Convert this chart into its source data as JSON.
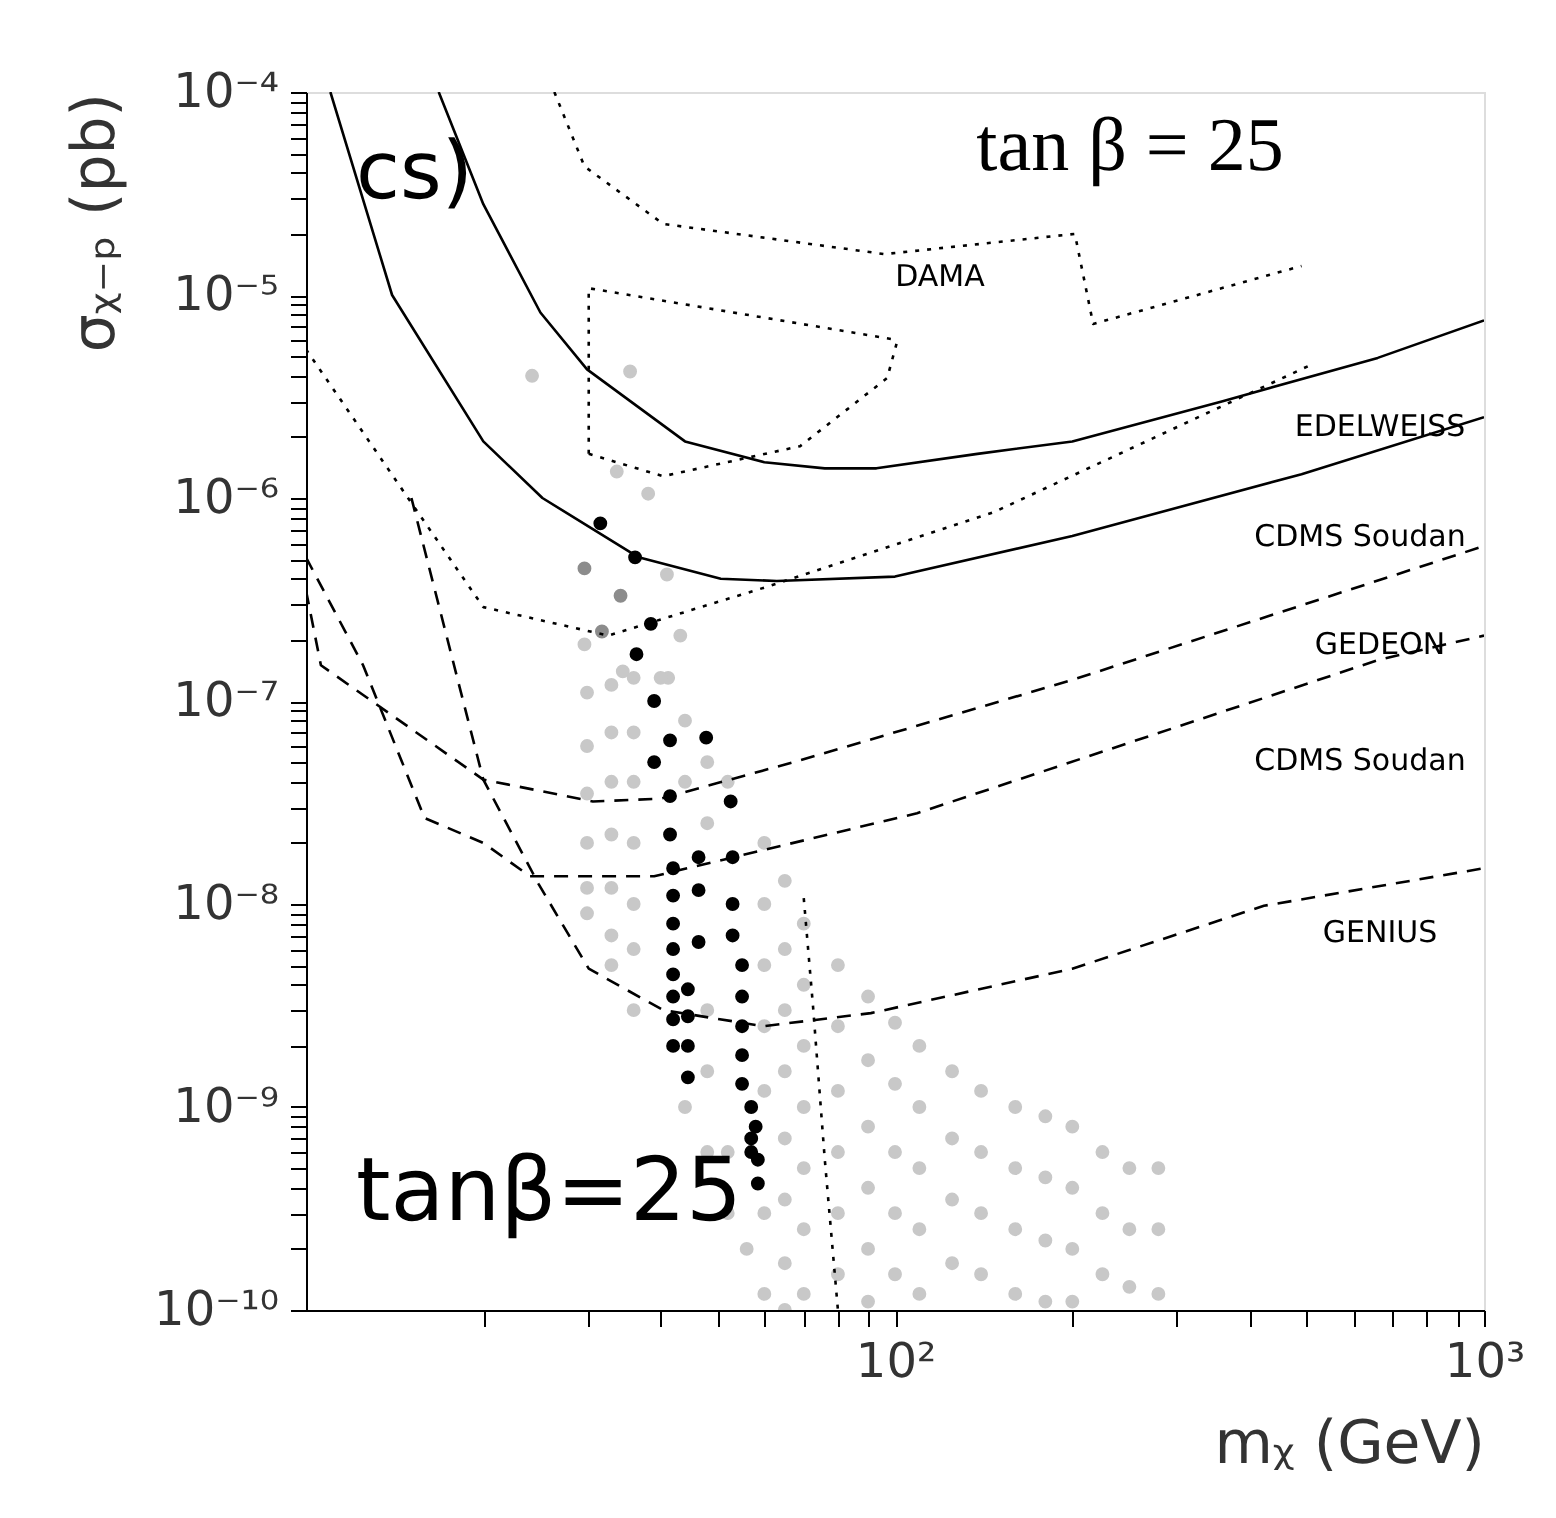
{
  "chart_data": {
    "type": "line",
    "xlabel": "mᵪ (GeV)",
    "ylabel": "σᵪ₋ₚ (pb)",
    "log": "xy",
    "grid": false,
    "xlim": [
      10,
      1000
    ],
    "ylim": [
      1e-10,
      0.0001
    ],
    "xticks": [
      {
        "value": 20,
        "label": null
      },
      {
        "value": 30,
        "label": null
      },
      {
        "value": 40,
        "label": null
      },
      {
        "value": 50,
        "label": null
      },
      {
        "value": 60,
        "label": null
      },
      {
        "value": 70,
        "label": null
      },
      {
        "value": 80,
        "label": null
      },
      {
        "value": 90,
        "label": null
      },
      {
        "value": 100,
        "label": "10²"
      },
      {
        "value": 200,
        "label": null
      },
      {
        "value": 300,
        "label": null
      },
      {
        "value": 400,
        "label": null
      },
      {
        "value": 500,
        "label": null
      },
      {
        "value": 600,
        "label": null
      },
      {
        "value": 700,
        "label": null
      },
      {
        "value": 800,
        "label": null
      },
      {
        "value": 900,
        "label": null
      },
      {
        "value": 1000,
        "label": "10³"
      }
    ],
    "yticks": [
      {
        "value": 1e-10,
        "label": "10⁻¹⁰"
      },
      {
        "value": 2e-10,
        "label": null
      },
      {
        "value": 3e-10,
        "label": null
      },
      {
        "value": 4e-10,
        "label": null
      },
      {
        "value": 5e-10,
        "label": null
      },
      {
        "value": 6e-10,
        "label": null
      },
      {
        "value": 7e-10,
        "label": null
      },
      {
        "value": 8e-10,
        "label": null
      },
      {
        "value": 9e-10,
        "label": null
      },
      {
        "value": 1e-09,
        "label": "10⁻⁹"
      },
      {
        "value": 2e-09,
        "label": null
      },
      {
        "value": 3e-09,
        "label": null
      },
      {
        "value": 4e-09,
        "label": null
      },
      {
        "value": 5e-09,
        "label": null
      },
      {
        "value": 6e-09,
        "label": null
      },
      {
        "value": 7e-09,
        "label": null
      },
      {
        "value": 8e-09,
        "label": null
      },
      {
        "value": 9e-09,
        "label": null
      },
      {
        "value": 1e-08,
        "label": "10⁻⁸"
      },
      {
        "value": 2e-08,
        "label": null
      },
      {
        "value": 3e-08,
        "label": null
      },
      {
        "value": 4e-08,
        "label": null
      },
      {
        "value": 5e-08,
        "label": null
      },
      {
        "value": 6e-08,
        "label": null
      },
      {
        "value": 7e-08,
        "label": null
      },
      {
        "value": 8e-08,
        "label": null
      },
      {
        "value": 9e-08,
        "label": null
      },
      {
        "value": 1e-07,
        "label": "10⁻⁷"
      },
      {
        "value": 2e-07,
        "label": null
      },
      {
        "value": 3e-07,
        "label": null
      },
      {
        "value": 4e-07,
        "label": null
      },
      {
        "value": 5e-07,
        "label": null
      },
      {
        "value": 6e-07,
        "label": null
      },
      {
        "value": 7e-07,
        "label": null
      },
      {
        "value": 8e-07,
        "label": null
      },
      {
        "value": 9e-07,
        "label": null
      },
      {
        "value": 1e-06,
        "label": "10⁻⁶"
      },
      {
        "value": 2e-06,
        "label": null
      },
      {
        "value": 3e-06,
        "label": null
      },
      {
        "value": 4e-06,
        "label": null
      },
      {
        "value": 5e-06,
        "label": null
      },
      {
        "value": 6e-06,
        "label": null
      },
      {
        "value": 7e-06,
        "label": null
      },
      {
        "value": 8e-06,
        "label": null
      },
      {
        "value": 9e-06,
        "label": null
      },
      {
        "value": 1e-05,
        "label": "10⁻⁵"
      },
      {
        "value": 2e-05,
        "label": null
      },
      {
        "value": 3e-05,
        "label": null
      },
      {
        "value": 4e-05,
        "label": null
      },
      {
        "value": 5e-05,
        "label": null
      },
      {
        "value": 6e-05,
        "label": null
      },
      {
        "value": 7e-05,
        "label": null
      },
      {
        "value": 8e-05,
        "label": null
      },
      {
        "value": 9e-05,
        "label": null
      },
      {
        "value": 0.0001,
        "label": "10⁻⁴"
      }
    ],
    "series": [
      {
        "type": "scatter",
        "marker": "circle",
        "color": "#c8c8c8",
        "x": [
          24.2,
          35.5,
          33.7,
          38.1,
          41,
          43.2,
          29.7,
          34.5,
          41.2,
          30,
          30,
          30,
          30,
          30,
          30,
          33,
          33,
          33,
          33,
          33,
          33,
          33,
          36,
          36,
          36,
          36,
          36,
          36,
          36,
          40,
          44,
          44,
          44,
          48,
          48,
          48,
          48,
          48,
          52,
          52,
          52,
          56,
          60,
          60,
          60,
          60,
          60,
          60,
          60,
          65,
          65,
          65,
          65,
          65,
          65,
          65,
          65,
          70,
          70,
          70,
          70,
          70,
          70,
          70,
          80,
          80,
          80,
          80,
          80,
          80,
          90,
          90,
          90,
          90,
          90,
          90,
          100,
          100,
          100,
          100,
          100,
          110,
          110,
          110,
          110,
          110,
          125,
          125,
          125,
          125,
          140,
          140,
          140,
          140,
          160,
          160,
          160,
          160,
          180,
          180,
          180,
          180,
          200,
          200,
          200,
          200,
          225,
          225,
          225,
          250,
          250,
          250,
          280,
          280,
          280
        ],
        "values": [
          4e-06,
          4.2e-06,
          1.35e-06,
          1.05e-06,
          4.2e-07,
          2.1e-07,
          1.9e-07,
          1.4e-07,
          1.3e-07,
          1.1e-07,
          6e-08,
          3.5e-08,
          2e-08,
          1.2e-08,
          9e-09,
          1.2e-07,
          7e-08,
          4e-08,
          2.2e-08,
          1.2e-08,
          7e-09,
          5e-09,
          1.3e-07,
          7e-08,
          4e-08,
          2e-08,
          1e-08,
          6e-09,
          3e-09,
          1.3e-07,
          8e-08,
          4e-08,
          1e-09,
          5e-08,
          2.5e-08,
          3e-09,
          1.5e-09,
          6e-10,
          4e-08,
          6e-10,
          3e-10,
          2e-10,
          2e-08,
          1e-08,
          5e-09,
          2.5e-09,
          1.2e-09,
          3e-10,
          1.2e-10,
          1.3e-08,
          6e-09,
          3e-09,
          1.5e-09,
          7e-10,
          3.5e-10,
          1.7e-10,
          1e-10,
          8e-09,
          4e-09,
          2e-09,
          1e-09,
          5e-10,
          2.5e-10,
          1.2e-10,
          5e-09,
          2.5e-09,
          1.2e-09,
          6e-10,
          3e-10,
          1.5e-10,
          3.5e-09,
          1.7e-09,
          8e-10,
          4e-10,
          2e-10,
          1.1e-10,
          2.6e-09,
          1.3e-09,
          6e-10,
          3e-10,
          1.5e-10,
          2e-09,
          1e-09,
          5e-10,
          2.5e-10,
          1.2e-10,
          1.5e-09,
          7e-10,
          3.5e-10,
          1.7e-10,
          1.2e-09,
          6e-10,
          3e-10,
          1.5e-10,
          1e-09,
          5e-10,
          2.5e-10,
          1.2e-10,
          9e-10,
          4.5e-10,
          2.2e-10,
          1.1e-10,
          8e-10,
          4e-10,
          2e-10,
          1.1e-10,
          6e-10,
          3e-10,
          1.5e-10,
          5e-10,
          2.5e-10,
          1.3e-10,
          5e-10,
          2.5e-10,
          1.2e-10
        ]
      },
      {
        "type": "scatter",
        "marker": "circle",
        "color": "#8c8c8c",
        "x": [
          29.7,
          34.2,
          31.8
        ],
        "values": [
          4.5e-07,
          3.3e-07,
          2.2e-07
        ]
      },
      {
        "type": "scatter",
        "marker": "circle",
        "color": "#000000",
        "x": [
          31.6,
          36.2,
          38.5,
          36.4,
          39,
          39,
          41.5,
          47.8,
          41.5,
          52.6,
          41.5,
          46.4,
          53,
          42,
          46.4,
          53,
          42,
          46.4,
          53,
          42,
          42,
          42,
          42,
          42,
          42,
          44.5,
          44.5,
          44.5,
          44.5,
          55,
          55,
          55,
          55,
          55,
          57,
          58,
          57,
          58.5,
          58.5,
          57
        ],
        "values": [
          7.5e-07,
          5.1e-07,
          2.4e-07,
          1.7e-07,
          1e-07,
          5e-08,
          6.4e-08,
          6.6e-08,
          3.4e-08,
          3.2e-08,
          2.2e-08,
          1.7e-08,
          1.7e-08,
          1.5e-08,
          1.17e-08,
          1e-08,
          1.1e-08,
          6.5e-09,
          7e-09,
          8e-09,
          6e-09,
          4.5e-09,
          3.5e-09,
          2.7e-09,
          2e-09,
          3.8e-09,
          2.8e-09,
          2e-09,
          1.4e-09,
          5e-09,
          3.5e-09,
          2.5e-09,
          1.8e-09,
          1.3e-09,
          1e-09,
          8e-10,
          7e-10,
          5.5e-10,
          4.2e-10,
          6e-10
        ]
      },
      {
        "line_style": "solid",
        "color": "#000000",
        "x": [
          16.8,
          20,
          25,
          30,
          44,
          60,
          76,
          93,
          138,
          200,
          360,
          660,
          1000
        ],
        "values": [
          0.0001,
          2.8e-05,
          8.2e-06,
          4.3e-06,
          1.9e-06,
          1.5e-06,
          1.4e-06,
          1.4e-06,
          1.65e-06,
          1.9e-06,
          3e-06,
          4.9e-06,
          7.5e-06
        ]
      },
      {
        "line_style": "solid",
        "color": "#000000",
        "x": [
          11,
          14,
          20,
          25.2,
          36.7,
          50.6,
          63,
          100,
          200,
          490,
          1000
        ],
        "values": [
          0.0001,
          1e-05,
          1.9e-06,
          1e-06,
          5.1e-07,
          4e-07,
          3.9e-07,
          4.1e-07,
          6.5e-07,
          1.31e-06,
          2.5e-06
        ]
      },
      {
        "line_style": "dotted",
        "color": "#000000",
        "x": [
          26.4,
          29.7,
          40.4,
          96,
          202,
          217,
          490
        ],
        "values": [
          0.0001,
          4.3e-05,
          2.24e-05,
          1.59e-05,
          2e-05,
          7.2e-06,
          1.39e-05
        ]
      },
      {
        "line_style": "dotted",
        "color": "#000000",
        "x": [
          30.2,
          30.2,
          101
        ],
        "values": [
          1.65e-06,
          1.08e-05,
          6e-06
        ]
      },
      {
        "line_style": "dotted",
        "color": "#000000",
        "x": [
          30.2,
          40.4,
          69,
          97,
          101
        ],
        "values": [
          1.65e-06,
          1.28e-06,
          1.8e-06,
          3.9e-06,
          6e-06
        ]
      },
      {
        "line_style": "dotted",
        "color": "#000000",
        "x": [
          10,
          14.9,
          20,
          32.6,
          61.5,
          147,
          506
        ],
        "values": [
          5.4e-06,
          1e-06,
          2.9e-07,
          2.1e-07,
          3.7e-07,
          8.5e-07,
          4.5e-06
        ]
      },
      {
        "line_style": "dashed",
        "color": "#000000",
        "x": [
          10,
          10.6,
          20,
          30.7,
          40,
          69,
          200,
          1000
        ],
        "values": [
          3.5e-07,
          1.5e-07,
          4.1e-08,
          3.2e-08,
          3.3e-08,
          5.1e-08,
          1.27e-07,
          5.8e-07
        ]
      },
      {
        "line_style": "dashed",
        "color": "#000000",
        "x": [
          10,
          12.5,
          15.9,
          20,
          24,
          39,
          109,
          665,
          1000
        ],
        "values": [
          5.1e-07,
          1.5e-07,
          2.65e-08,
          2e-08,
          1.37e-08,
          1.37e-08,
          2.8e-08,
          1.6e-07,
          2.1e-07
        ]
      },
      {
        "line_style": "dashed",
        "color": "#000000",
        "x": [
          15.1,
          18.1,
          20,
          24.8,
          30.2,
          40.4,
          59.8,
          91,
          200,
          423,
          1000
        ],
        "values": [
          1e-06,
          1.27e-07,
          4.1e-08,
          1.26e-08,
          4.8e-09,
          3e-09,
          2.5e-09,
          2.9e-09,
          4.8e-09,
          9.8e-09,
          1.5e-08
        ]
      },
      {
        "line_style": "dotted",
        "color": "#000000",
        "x": [
          70,
          72.6,
          76,
          80
        ],
        "values": [
          1.07e-08,
          3.1e-09,
          5.5e-10,
          1e-10
        ]
      }
    ],
    "annotations": [
      "cs)",
      "tan β = 25",
      "tanβ=25",
      "DAMA",
      "EDELWEISS",
      "CDMS Soudan",
      "GEDEON",
      "CDMS Soudan",
      "GENIUS"
    ]
  }
}
